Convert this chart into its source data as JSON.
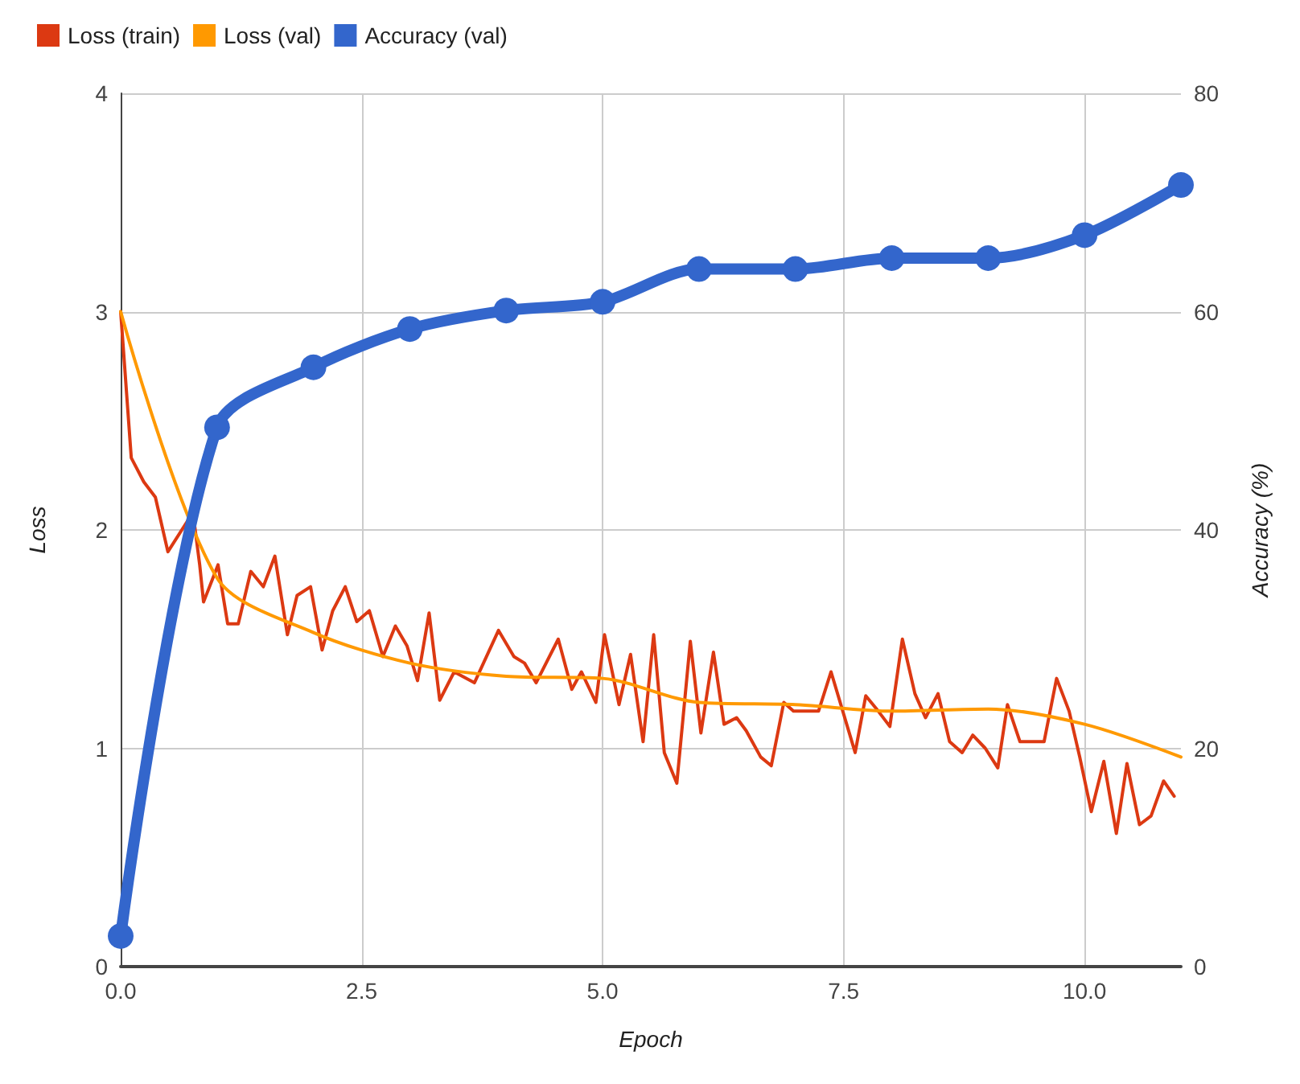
{
  "chart_data": {
    "type": "line",
    "xlabel": "Epoch",
    "ylabel": "Loss",
    "y2label": "Accuracy (%)",
    "xlim": [
      0,
      11
    ],
    "xticks": [
      {
        "value": 0,
        "label": "0.0"
      },
      {
        "value": 2.5,
        "label": "2.5"
      },
      {
        "value": 5,
        "label": "5.0"
      },
      {
        "value": 7.5,
        "label": "7.5"
      },
      {
        "value": 10,
        "label": "10.0"
      }
    ],
    "ylim": [
      0,
      4
    ],
    "yticks": [
      0,
      1,
      2,
      3,
      4
    ],
    "y2lim": [
      0,
      80
    ],
    "y2ticks": [
      0,
      20,
      40,
      60,
      80
    ],
    "grid": true,
    "legend": "top left",
    "series": [
      {
        "name": "Loss (train)",
        "color": "#dc3912",
        "marker": "none",
        "x": [
          0,
          0.11,
          0.24,
          0.36,
          0.49,
          0.75,
          0.82,
          0.86,
          1.01,
          1.11,
          1.22,
          1.35,
          1.48,
          1.6,
          1.73,
          1.83,
          1.97,
          2.09,
          2.2,
          2.33,
          2.45,
          2.58,
          2.72,
          2.85,
          2.97,
          3.08,
          3.2,
          3.31,
          3.46,
          3.67,
          3.92,
          4.08,
          4.19,
          4.31,
          4.54,
          4.68,
          4.78,
          4.93,
          5.02,
          5.17,
          5.29,
          5.42,
          5.53,
          5.64,
          5.77,
          5.91,
          6.02,
          6.15,
          6.26,
          6.39,
          6.49,
          6.64,
          6.75,
          6.88,
          6.98,
          7.24,
          7.37,
          7.62,
          7.73,
          7.86,
          7.98,
          8.11,
          8.24,
          8.35,
          8.48,
          8.6,
          8.73,
          8.84,
          8.97,
          9.1,
          9.2,
          9.33,
          9.58,
          9.71,
          9.84,
          9.95,
          10.07,
          10.2,
          10.33,
          10.44,
          10.57,
          10.69,
          10.82,
          10.93
        ],
        "values": [
          3.0,
          2.33,
          2.22,
          2.15,
          1.9,
          2.08,
          1.84,
          1.67,
          1.84,
          1.57,
          1.57,
          1.81,
          1.74,
          1.88,
          1.52,
          1.7,
          1.74,
          1.45,
          1.63,
          1.74,
          1.58,
          1.63,
          1.42,
          1.56,
          1.47,
          1.31,
          1.62,
          1.22,
          1.35,
          1.3,
          1.54,
          1.42,
          1.39,
          1.3,
          1.5,
          1.27,
          1.35,
          1.21,
          1.52,
          1.2,
          1.43,
          1.03,
          1.52,
          0.98,
          0.84,
          1.49,
          1.07,
          1.44,
          1.11,
          1.14,
          1.08,
          0.96,
          0.92,
          1.21,
          1.17,
          1.17,
          1.35,
          0.98,
          1.24,
          1.17,
          1.1,
          1.5,
          1.25,
          1.14,
          1.25,
          1.03,
          0.98,
          1.06,
          1.0,
          0.91,
          1.2,
          1.03,
          1.03,
          1.32,
          1.17,
          0.96,
          0.71,
          0.94,
          0.61,
          0.93,
          0.65,
          0.69,
          0.85,
          0.78
        ]
      },
      {
        "name": "Loss (val)",
        "color": "#ff9900",
        "marker": "none",
        "x": [
          0,
          1,
          2,
          3,
          4,
          5,
          6,
          7,
          8,
          9,
          10,
          11
        ],
        "values": [
          3.0,
          1.78,
          1.53,
          1.39,
          1.33,
          1.32,
          1.21,
          1.2,
          1.17,
          1.18,
          1.11,
          0.96
        ]
      },
      {
        "name": "Accuracy (val)",
        "color": "#3366cc",
        "marker": "circle",
        "axis": "y2",
        "x": [
          0,
          1,
          2,
          3,
          4,
          5,
          6,
          7,
          8,
          9,
          10,
          11
        ],
        "values": [
          2.8,
          49.4,
          54.9,
          58.4,
          60.1,
          60.9,
          63.9,
          63.9,
          64.9,
          64.9,
          67.0,
          71.6
        ]
      }
    ]
  }
}
